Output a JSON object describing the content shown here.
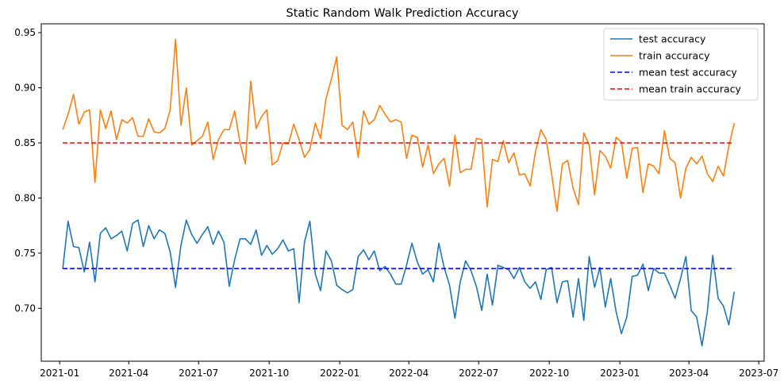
{
  "chart_data": {
    "type": "line",
    "title": "Static Random Walk Prediction Accuracy",
    "xlabel": "",
    "ylabel": "",
    "x_ticks": [
      "2021-01",
      "2021-04",
      "2021-07",
      "2021-10",
      "2022-01",
      "2022-04",
      "2022-07",
      "2022-10",
      "2023-01",
      "2023-04",
      "2023-07"
    ],
    "y_ticks": [
      "0.70",
      "0.75",
      "0.80",
      "0.85",
      "0.90",
      "0.95"
    ],
    "xlim": [
      "2020-12-08",
      "2023-07-08"
    ],
    "ylim": [
      0.652,
      0.958
    ],
    "grid": false,
    "legend_position": "top-right",
    "start_date": "2021-01-05",
    "frequency": "weekly",
    "series": [
      {
        "name": "test accuracy",
        "color": "#1f77b4",
        "style": "solid",
        "values": [
          0.736,
          0.779,
          0.756,
          0.755,
          0.733,
          0.76,
          0.724,
          0.768,
          0.773,
          0.763,
          0.766,
          0.77,
          0.752,
          0.777,
          0.78,
          0.756,
          0.775,
          0.763,
          0.771,
          0.768,
          0.751,
          0.719,
          0.757,
          0.78,
          0.767,
          0.759,
          0.767,
          0.774,
          0.758,
          0.77,
          0.76,
          0.72,
          0.744,
          0.763,
          0.763,
          0.758,
          0.771,
          0.748,
          0.757,
          0.749,
          0.754,
          0.762,
          0.752,
          0.754,
          0.705,
          0.76,
          0.779,
          0.731,
          0.716,
          0.752,
          0.743,
          0.721,
          0.717,
          0.714,
          0.717,
          0.747,
          0.753,
          0.744,
          0.752,
          0.734,
          0.738,
          0.731,
          0.722,
          0.722,
          0.739,
          0.759,
          0.742,
          0.731,
          0.735,
          0.724,
          0.759,
          0.737,
          0.721,
          0.691,
          0.724,
          0.743,
          0.734,
          0.72,
          0.698,
          0.731,
          0.703,
          0.739,
          0.737,
          0.735,
          0.727,
          0.737,
          0.724,
          0.718,
          0.724,
          0.708,
          0.735,
          0.737,
          0.705,
          0.724,
          0.725,
          0.692,
          0.727,
          0.689,
          0.747,
          0.719,
          0.737,
          0.701,
          0.727,
          0.697,
          0.677,
          0.692,
          0.729,
          0.73,
          0.74,
          0.716,
          0.736,
          0.732,
          0.732,
          0.721,
          0.709,
          0.727,
          0.747,
          0.698,
          0.692,
          0.666,
          0.697,
          0.748,
          0.709,
          0.702,
          0.685,
          0.715
        ]
      },
      {
        "name": "train accuracy",
        "color": "#ff7f0e",
        "style": "solid",
        "values": [
          0.862,
          0.876,
          0.894,
          0.867,
          0.878,
          0.88,
          0.814,
          0.88,
          0.863,
          0.879,
          0.853,
          0.871,
          0.868,
          0.873,
          0.856,
          0.856,
          0.872,
          0.86,
          0.859,
          0.863,
          0.88,
          0.944,
          0.866,
          0.9,
          0.848,
          0.852,
          0.856,
          0.869,
          0.835,
          0.853,
          0.862,
          0.862,
          0.879,
          0.85,
          0.831,
          0.906,
          0.863,
          0.874,
          0.88,
          0.83,
          0.834,
          0.85,
          0.849,
          0.867,
          0.853,
          0.837,
          0.844,
          0.868,
          0.854,
          0.89,
          0.908,
          0.928,
          0.866,
          0.862,
          0.869,
          0.837,
          0.879,
          0.867,
          0.871,
          0.884,
          0.876,
          0.869,
          0.871,
          0.869,
          0.836,
          0.857,
          0.855,
          0.828,
          0.848,
          0.822,
          0.831,
          0.836,
          0.811,
          0.857,
          0.823,
          0.826,
          0.826,
          0.854,
          0.853,
          0.792,
          0.835,
          0.833,
          0.852,
          0.832,
          0.841,
          0.821,
          0.822,
          0.811,
          0.842,
          0.862,
          0.853,
          0.822,
          0.788,
          0.831,
          0.834,
          0.809,
          0.794,
          0.859,
          0.848,
          0.803,
          0.843,
          0.838,
          0.827,
          0.855,
          0.851,
          0.818,
          0.845,
          0.846,
          0.805,
          0.831,
          0.829,
          0.822,
          0.861,
          0.836,
          0.832,
          0.8,
          0.827,
          0.837,
          0.831,
          0.838,
          0.822,
          0.815,
          0.829,
          0.82,
          0.847,
          0.868
        ]
      },
      {
        "name": "mean test accuracy",
        "color": "#0000ff",
        "style": "dashed",
        "values": [
          0.736,
          0.736
        ]
      },
      {
        "name": "mean train accuracy",
        "color": "#ff0000",
        "style": "dashed",
        "values": [
          0.85,
          0.85
        ]
      }
    ]
  }
}
